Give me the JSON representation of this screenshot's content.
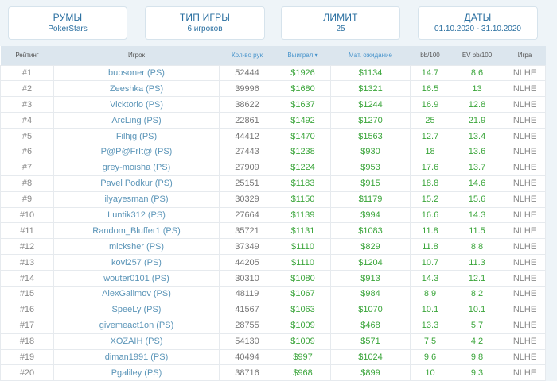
{
  "filters": [
    {
      "title": "РУМЫ",
      "value": "PokerStars"
    },
    {
      "title": "ТИП ИГРЫ",
      "value": "6 игроков"
    },
    {
      "title": "ЛИМИТ",
      "value": "25"
    },
    {
      "title": "ДАТЫ",
      "value": "01.10.2020 - 31.10.2020"
    }
  ],
  "table": {
    "headers": [
      "Рейтинг",
      "Игрок",
      "Кол-во рук",
      "Выиграл ▾",
      "Мат. ожидание",
      "bb/100",
      "EV bb/100",
      "Игра"
    ],
    "sorted_column": "Выиграл",
    "rows": [
      [
        "#1",
        "bubsoner (PS)",
        "52444",
        "$1926",
        "$1134",
        "14.7",
        "8.6",
        "NLHE"
      ],
      [
        "#2",
        "Zeeshka (PS)",
        "39996",
        "$1680",
        "$1321",
        "16.5",
        "13",
        "NLHE"
      ],
      [
        "#3",
        "Vicktorio (PS)",
        "38622",
        "$1637",
        "$1244",
        "16.9",
        "12.8",
        "NLHE"
      ],
      [
        "#4",
        "ArcLing (PS)",
        "22861",
        "$1492",
        "$1270",
        "25",
        "21.9",
        "NLHE"
      ],
      [
        "#5",
        "Filhjg (PS)",
        "44412",
        "$1470",
        "$1563",
        "12.7",
        "13.4",
        "NLHE"
      ],
      [
        "#6",
        "P@P@FrIt@ (PS)",
        "27443",
        "$1238",
        "$930",
        "18",
        "13.6",
        "NLHE"
      ],
      [
        "#7",
        "grey-moisha (PS)",
        "27909",
        "$1224",
        "$953",
        "17.6",
        "13.7",
        "NLHE"
      ],
      [
        "#8",
        "Pavel Podkur (PS)",
        "25151",
        "$1183",
        "$915",
        "18.8",
        "14.6",
        "NLHE"
      ],
      [
        "#9",
        "ilyayesman (PS)",
        "30329",
        "$1150",
        "$1179",
        "15.2",
        "15.6",
        "NLHE"
      ],
      [
        "#10",
        "Luntik312 (PS)",
        "27664",
        "$1139",
        "$994",
        "16.6",
        "14.3",
        "NLHE"
      ],
      [
        "#11",
        "Random_Bluffer1 (PS)",
        "35721",
        "$1131",
        "$1083",
        "11.8",
        "11.5",
        "NLHE"
      ],
      [
        "#12",
        "micksher (PS)",
        "37349",
        "$1110",
        "$829",
        "11.8",
        "8.8",
        "NLHE"
      ],
      [
        "#13",
        "kovi257 (PS)",
        "44205",
        "$1110",
        "$1204",
        "10.7",
        "11.3",
        "NLHE"
      ],
      [
        "#14",
        "wouter0101 (PS)",
        "30310",
        "$1080",
        "$913",
        "14.3",
        "12.1",
        "NLHE"
      ],
      [
        "#15",
        "AlexGalimov (PS)",
        "48119",
        "$1067",
        "$984",
        "8.9",
        "8.2",
        "NLHE"
      ],
      [
        "#16",
        "SpeeLy (PS)",
        "41567",
        "$1063",
        "$1070",
        "10.1",
        "10.1",
        "NLHE"
      ],
      [
        "#17",
        "givemeact1on (PS)",
        "28755",
        "$1009",
        "$468",
        "13.3",
        "5.7",
        "NLHE"
      ],
      [
        "#18",
        "XOZAIH (PS)",
        "54130",
        "$1009",
        "$571",
        "7.5",
        "4.2",
        "NLHE"
      ],
      [
        "#19",
        "diman1991 (PS)",
        "40494",
        "$997",
        "$1024",
        "9.6",
        "9.8",
        "NLHE"
      ],
      [
        "#20",
        "Pgaliley (PS)",
        "38716",
        "$968",
        "$899",
        "10",
        "9.3",
        "NLHE"
      ]
    ]
  },
  "colors": {
    "accent": "#2a6fa0",
    "positive": "#3aa53a",
    "header_bg": "#dce6ee"
  }
}
